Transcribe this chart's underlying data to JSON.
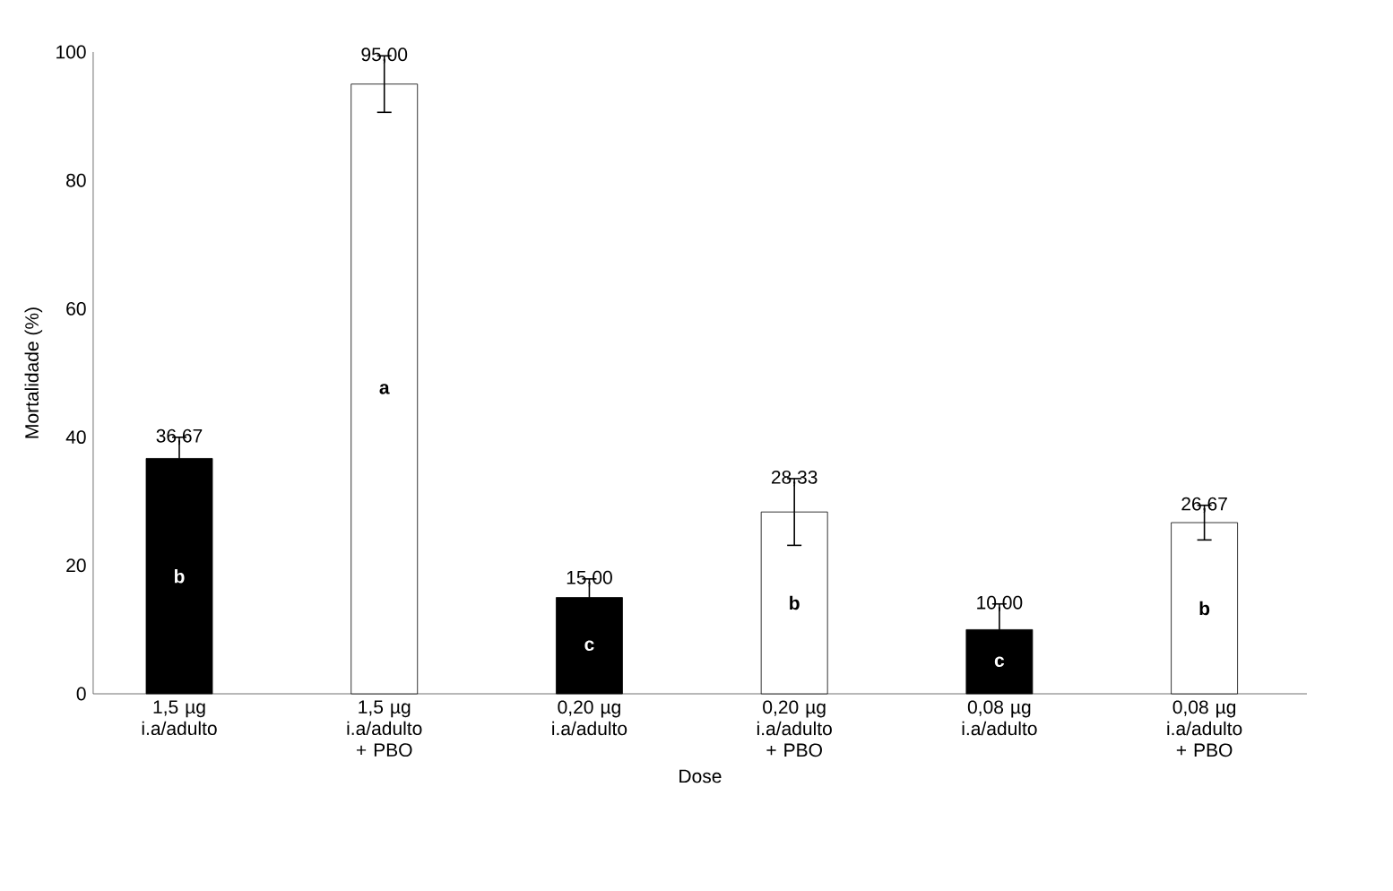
{
  "chart_data": {
    "type": "bar",
    "xlabel": "Dose",
    "ylabel": "Mortalidade (%)",
    "categories": [
      "1,5 µg i.a/adulto",
      "1,5 µg i.a/adulto + PBO",
      "0,20 µg i.a/adulto",
      "0,20 µg i.a/adulto + PBO",
      "0,08 µg i.a/adulto",
      "0,08 µg i.a/adulto + PBO"
    ],
    "values": [
      36.67,
      95,
      15,
      28.33,
      10,
      26.67
    ],
    "colors": [
      "#000000",
      "#ffffff",
      "#000000",
      "#ffffff",
      "#000000",
      "#ffffff"
    ],
    "errors": [
      3.3,
      4.4,
      2.9,
      5.2,
      4,
      2.7
    ],
    "value_labels": [
      "36,67",
      "95,00",
      "15,00",
      "28,33",
      "10,00",
      "26,67"
    ],
    "ylim": [
      0,
      100
    ],
    "yticks": [
      0,
      20,
      40,
      60,
      80,
      100
    ],
    "grid": false,
    "annotations": [
      "b",
      "a",
      "c",
      "b",
      "c",
      "b"
    ]
  }
}
